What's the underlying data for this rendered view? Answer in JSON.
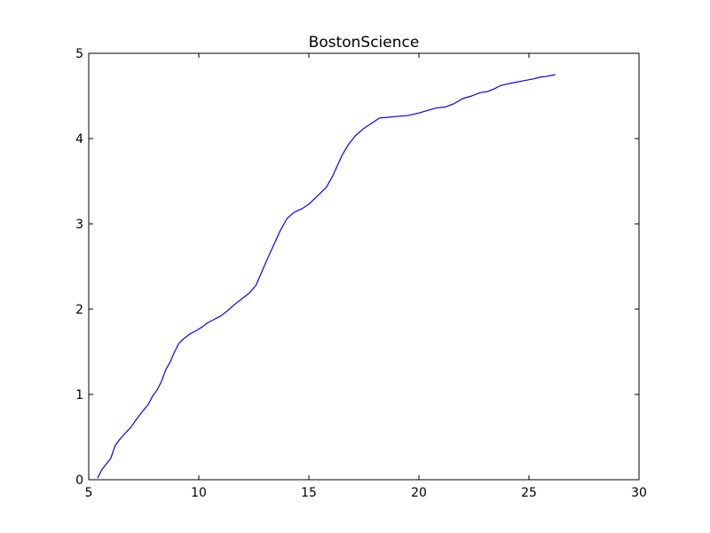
{
  "chart_data": {
    "type": "line",
    "title": "BostonScience",
    "xlabel": "",
    "ylabel": "",
    "xlim": [
      5,
      30
    ],
    "ylim": [
      0,
      5
    ],
    "xticks": [
      "5",
      "10",
      "15",
      "20",
      "25",
      "30"
    ],
    "yticks": [
      "0",
      "1",
      "2",
      "3",
      "4",
      "5"
    ],
    "grid": false,
    "legend": "none",
    "line_color": "#0000ff",
    "series": [
      {
        "x": [
          5.4,
          5.6,
          6.0,
          6.2,
          6.4,
          6.6,
          6.9,
          7.2,
          7.5,
          7.7,
          7.9,
          8.1,
          8.3,
          8.5,
          8.7,
          8.9,
          9.1,
          9.3,
          9.6,
          9.9,
          10.2,
          10.4,
          10.7,
          11.0,
          11.3,
          11.6,
          12.0,
          12.3,
          12.6,
          12.8,
          13.1,
          13.4,
          13.7,
          14.0,
          14.3,
          14.7,
          15.0,
          15.4,
          15.8,
          16.1,
          16.5,
          16.8,
          17.1,
          17.5,
          17.8,
          18.2,
          18.6,
          19.0,
          19.5,
          20.0,
          20.4,
          20.8,
          21.2,
          21.6,
          22.0,
          22.4,
          22.8,
          23.1,
          23.4,
          23.7,
          24.0,
          24.4,
          24.8,
          25.2,
          25.5,
          25.8,
          26.2
        ],
        "y": [
          0.02,
          0.12,
          0.25,
          0.4,
          0.47,
          0.53,
          0.61,
          0.72,
          0.82,
          0.88,
          0.98,
          1.05,
          1.15,
          1.29,
          1.38,
          1.5,
          1.6,
          1.65,
          1.71,
          1.75,
          1.8,
          1.84,
          1.88,
          1.92,
          1.98,
          2.05,
          2.13,
          2.19,
          2.28,
          2.4,
          2.58,
          2.75,
          2.92,
          3.06,
          3.13,
          3.18,
          3.23,
          3.33,
          3.43,
          3.57,
          3.8,
          3.93,
          4.03,
          4.12,
          4.17,
          4.24,
          4.25,
          4.26,
          4.27,
          4.3,
          4.33,
          4.36,
          4.37,
          4.41,
          4.47,
          4.5,
          4.54,
          4.55,
          4.58,
          4.62,
          4.64,
          4.66,
          4.68,
          4.7,
          4.72,
          4.73,
          4.75
        ]
      }
    ]
  }
}
